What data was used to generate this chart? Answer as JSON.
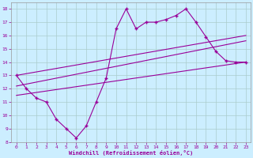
{
  "xlabel": "Windchill (Refroidissement éolien,°C)",
  "xlim": [
    -0.5,
    23.5
  ],
  "ylim": [
    8,
    18.5
  ],
  "yticks": [
    8,
    9,
    10,
    11,
    12,
    13,
    14,
    15,
    16,
    17,
    18
  ],
  "xticks": [
    0,
    1,
    2,
    3,
    4,
    5,
    6,
    7,
    8,
    9,
    10,
    11,
    12,
    13,
    14,
    15,
    16,
    17,
    18,
    19,
    20,
    21,
    22,
    23
  ],
  "bg_color": "#cceeff",
  "line_color": "#990099",
  "grid_color": "#aacccc",
  "main_data_x": [
    0,
    1,
    2,
    3,
    4,
    5,
    6,
    7,
    8,
    9,
    10,
    11,
    12,
    13,
    14,
    15,
    16,
    17,
    18,
    19,
    20,
    21,
    22,
    23
  ],
  "main_data_y": [
    13.0,
    12.0,
    11.3,
    11.0,
    9.7,
    9.0,
    8.3,
    9.2,
    11.0,
    12.8,
    16.5,
    18.0,
    16.5,
    17.0,
    17.0,
    17.2,
    17.5,
    18.0,
    17.0,
    15.9,
    14.8,
    14.1,
    14.0,
    14.0
  ],
  "reg_line1_x": [
    0,
    23
  ],
  "reg_line1_y": [
    13.0,
    16.0
  ],
  "reg_line2_x": [
    0,
    23
  ],
  "reg_line2_y": [
    12.2,
    15.6
  ],
  "reg_line3_x": [
    0,
    23
  ],
  "reg_line3_y": [
    11.5,
    14.0
  ]
}
